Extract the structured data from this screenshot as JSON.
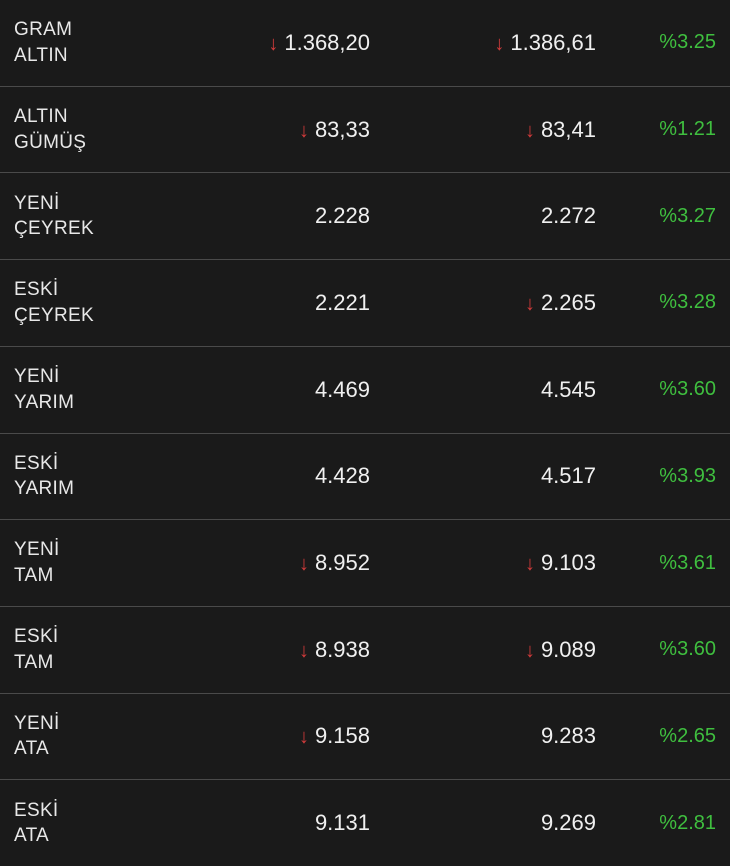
{
  "colors": {
    "bg": "#1a1a1a",
    "text": "#e8e8e8",
    "value": "#f0f0f0",
    "down": "#d13b3b",
    "up": "#3fbf3f",
    "divider": "#4a4a4a"
  },
  "arrow_down_glyph": "↓",
  "rows": [
    {
      "label_line1": "GRAM",
      "label_line2": "ALTIN",
      "v1": "1.368,20",
      "v1_down": true,
      "v2": "1.386,61",
      "v2_down": true,
      "pct": "%3.25"
    },
    {
      "label_line1": "ALTIN",
      "label_line2": "GÜMÜŞ",
      "v1": "83,33",
      "v1_down": true,
      "v2": "83,41",
      "v2_down": true,
      "pct": "%1.21"
    },
    {
      "label_line1": "YENİ",
      "label_line2": "ÇEYREK",
      "v1": "2.228",
      "v1_down": false,
      "v2": "2.272",
      "v2_down": false,
      "pct": "%3.27"
    },
    {
      "label_line1": "ESKİ",
      "label_line2": "ÇEYREK",
      "v1": "2.221",
      "v1_down": false,
      "v2": "2.265",
      "v2_down": true,
      "pct": "%3.28"
    },
    {
      "label_line1": "YENİ",
      "label_line2": "YARIM",
      "v1": "4.469",
      "v1_down": false,
      "v2": "4.545",
      "v2_down": false,
      "pct": "%3.60"
    },
    {
      "label_line1": "ESKİ",
      "label_line2": "YARIM",
      "v1": "4.428",
      "v1_down": false,
      "v2": "4.517",
      "v2_down": false,
      "pct": "%3.93"
    },
    {
      "label_line1": "YENİ",
      "label_line2": "TAM",
      "v1": "8.952",
      "v1_down": true,
      "v2": "9.103",
      "v2_down": true,
      "pct": "%3.61"
    },
    {
      "label_line1": "ESKİ",
      "label_line2": "TAM",
      "v1": "8.938",
      "v1_down": true,
      "v2": "9.089",
      "v2_down": true,
      "pct": "%3.60"
    },
    {
      "label_line1": "YENİ",
      "label_line2": "ATA",
      "v1": "9.158",
      "v1_down": true,
      "v2": "9.283",
      "v2_down": false,
      "pct": "%2.65"
    },
    {
      "label_line1": "ESKİ",
      "label_line2": "ATA",
      "v1": "9.131",
      "v1_down": false,
      "v2": "9.269",
      "v2_down": false,
      "pct": "%2.81"
    }
  ]
}
